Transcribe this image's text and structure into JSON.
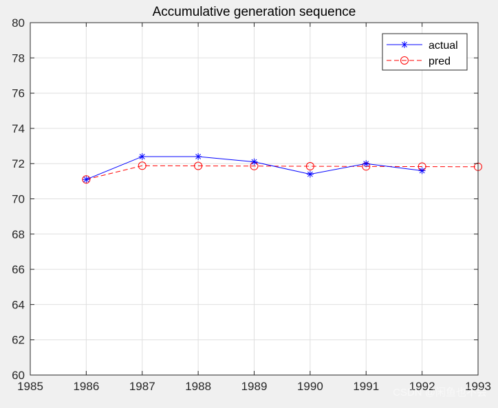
{
  "chart_data": {
    "type": "line",
    "title": "Accumulative generation sequence",
    "xlabel": "",
    "ylabel": "",
    "xlim": [
      1985,
      1993
    ],
    "ylim": [
      60,
      80
    ],
    "xticks": [
      "1985",
      "1986",
      "1987",
      "1988",
      "1989",
      "1990",
      "1991",
      "1992",
      "1993"
    ],
    "yticks": [
      "60",
      "62",
      "64",
      "66",
      "68",
      "70",
      "72",
      "74",
      "76",
      "78",
      "80"
    ],
    "grid": true,
    "legend_position": "top-right",
    "series": [
      {
        "name": "actual",
        "color": "#0000ff",
        "line_style": "solid",
        "marker": "asterisk",
        "x": [
          1986,
          1987,
          1988,
          1989,
          1990,
          1991,
          1992
        ],
        "y": [
          71.1,
          72.4,
          72.4,
          72.1,
          71.4,
          72.0,
          71.6
        ]
      },
      {
        "name": "pred",
        "color": "#ff0000",
        "line_style": "dashed",
        "marker": "circle",
        "x": [
          1986,
          1987,
          1988,
          1989,
          1990,
          1991,
          1992,
          1993
        ],
        "y": [
          71.1,
          71.88,
          71.87,
          71.86,
          71.85,
          71.84,
          71.83,
          71.82
        ]
      }
    ]
  },
  "watermark": "CSDN @闲鱼也不会"
}
